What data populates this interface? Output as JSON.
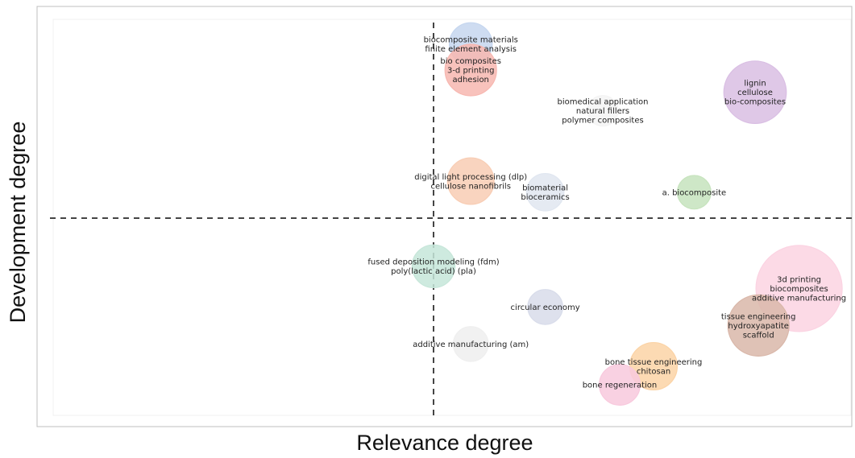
{
  "chart_data": {
    "type": "scatter",
    "subtype": "thematic-map-bubble",
    "title": "",
    "xlabel": "Relevance degree",
    "ylabel": "Development degree",
    "grid": false,
    "quadrant_dividers": "dashed",
    "points": [
      {
        "labels": [
          "biocomposite materials",
          "finite element analysis"
        ],
        "x": 0.11,
        "y": 0.97,
        "size": 1.6,
        "color": "#c5d6ef"
      },
      {
        "labels": [
          "bio composites",
          "3-d printing",
          "adhesion"
        ],
        "x": 0.11,
        "y": 0.9,
        "size": 2.6,
        "color": "#f7b7b0"
      },
      {
        "labels": [
          "lignin",
          "cellulose",
          "bio-composites"
        ],
        "x": 0.95,
        "y": 0.84,
        "size": 4.2,
        "color": "#d9bee3"
      },
      {
        "labels": [
          "biomedical application",
          "natural fillers",
          "polymer composites"
        ],
        "x": 0.5,
        "y": 0.79,
        "size": 0.6,
        "color": "#f4f4f4"
      },
      {
        "labels": [
          "digital light processing (dlp)",
          "cellulose nanofibrils"
        ],
        "x": 0.11,
        "y": 0.6,
        "size": 2.0,
        "color": "#f8cdb4"
      },
      {
        "labels": [
          "biomaterial",
          "bioceramics"
        ],
        "x": 0.33,
        "y": 0.57,
        "size": 1.1,
        "color": "#e0e6f0"
      },
      {
        "labels": [
          "a. biocomposite"
        ],
        "x": 0.77,
        "y": 0.57,
        "size": 0.8,
        "color": "#c6e3bd"
      },
      {
        "labels": [
          "fused deposition modeling (fdm)",
          "poly(lactic acid) (pla)"
        ],
        "x": 0.0,
        "y": 0.37,
        "size": 1.6,
        "color": "#c6e6d9"
      },
      {
        "labels": [
          "3d printing",
          "biocomposites",
          "additive manufacturing"
        ],
        "x": 1.08,
        "y": 0.31,
        "size": 9.0,
        "color": "#fbd3e2"
      },
      {
        "labels": [
          "circular economy"
        ],
        "x": 0.33,
        "y": 0.26,
        "size": 0.9,
        "color": "#d8dcea"
      },
      {
        "labels": [
          "tissue engineering",
          "hydroxyapatite",
          "scaffold"
        ],
        "x": 0.96,
        "y": 0.21,
        "size": 4.0,
        "color": "#d9b7a9"
      },
      {
        "labels": [
          "additive manufacturing (am)"
        ],
        "x": 0.11,
        "y": 0.16,
        "size": 0.9,
        "color": "#efefef"
      },
      {
        "labels": [
          "bone tissue engineering",
          "chitosan"
        ],
        "x": 0.65,
        "y": 0.1,
        "size": 2.1,
        "color": "#fbd3a6"
      },
      {
        "labels": [
          "bone regeneration"
        ],
        "x": 0.55,
        "y": 0.05,
        "size": 1.4,
        "color": "#f8c9dd"
      }
    ]
  },
  "colors": {
    "frame": "#bfbfbf",
    "divider": "#444444",
    "text": "#222222"
  }
}
